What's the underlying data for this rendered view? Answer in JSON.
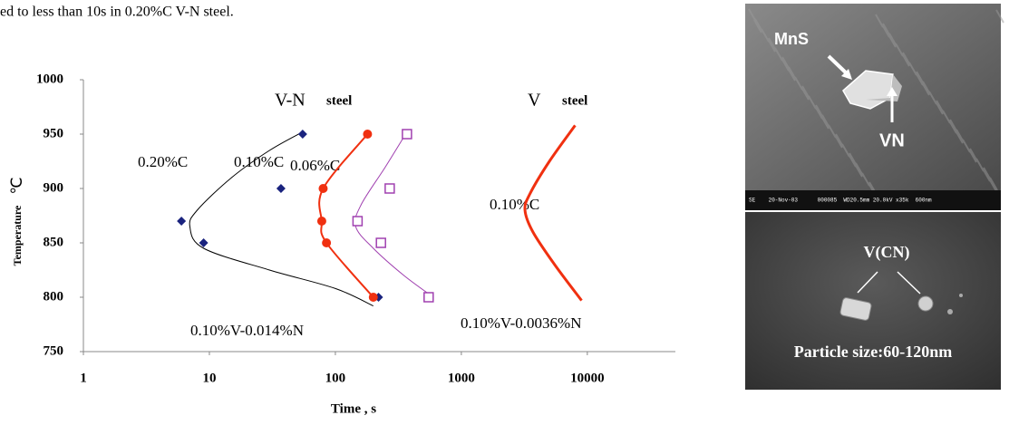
{
  "header": {
    "text": "ed to less than 10s in 0.20%C V-N steel."
  },
  "chart_data": {
    "type": "line",
    "log_x": true,
    "xlim": [
      1,
      50000
    ],
    "xticks": [
      1,
      10,
      100,
      1000,
      10000
    ],
    "ylim": [
      750,
      1000
    ],
    "yticks": [
      750,
      800,
      850,
      900,
      950,
      1000
    ],
    "xlabel": "Time , s",
    "ylabel": "Temperature",
    "ylabel_unit": "℃",
    "annotations": [
      "V-N",
      "steel",
      "V",
      "steel",
      "0.20%C",
      "0.10%C",
      "0.06%C",
      "0.10%C",
      "0.10%V-0.014%N",
      "0.10%V-0.0036%N"
    ],
    "series": [
      {
        "color": "#000000",
        "marker": "none",
        "line": 1,
        "x": [
          55,
          30,
          15,
          8,
          7,
          9,
          30,
          100,
          200
        ],
        "values": [
          952,
          935,
          910,
          880,
          865,
          845,
          825,
          808,
          792
        ]
      },
      {
        "color": "#1a237e",
        "marker": "diamond",
        "line": 0,
        "x": [
          55,
          37,
          6,
          9,
          220
        ],
        "values": [
          950,
          900,
          870,
          850,
          800
        ]
      },
      {
        "color": "#f03010",
        "marker": "circle",
        "line": 2,
        "x": [
          180,
          80,
          78,
          85,
          200
        ],
        "values": [
          950,
          900,
          870,
          850,
          800
        ]
      },
      {
        "color": "#a040b0",
        "marker": "none",
        "line": 1,
        "x": [
          370,
          250,
          160,
          145,
          200,
          350,
          600
        ],
        "values": [
          952,
          920,
          885,
          865,
          845,
          820,
          800
        ]
      },
      {
        "color": "#a040b0",
        "marker": "square",
        "line": 0,
        "x": [
          370,
          270,
          150,
          230,
          550
        ],
        "values": [
          950,
          900,
          870,
          850,
          800
        ]
      },
      {
        "color": "#f03010",
        "marker": "none",
        "line": 3,
        "x": [
          8000,
          5000,
          3500,
          3200,
          3700,
          5500,
          9000
        ],
        "values": [
          958,
          925,
          895,
          880,
          860,
          830,
          797
        ]
      }
    ]
  },
  "images": {
    "top_labels": [
      "MnS",
      "VN"
    ],
    "scale_bar": "SE    20-Nov-03      000085  WD20.5mm 20.0kV x35k  600nm",
    "bottom_labels": [
      "V(CN)",
      "Particle size:60-120nm"
    ]
  }
}
